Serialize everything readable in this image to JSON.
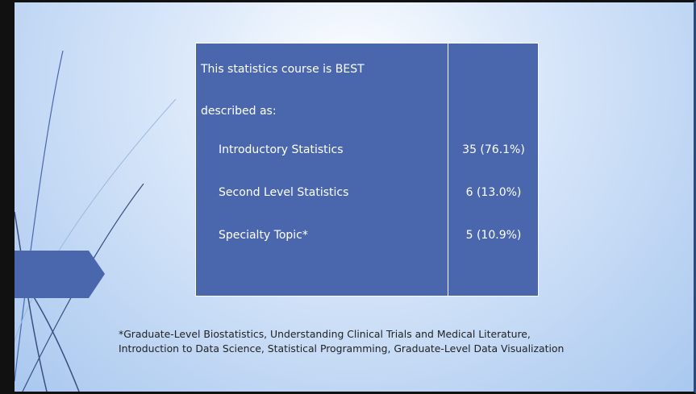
{
  "slide": {
    "table": {
      "header": "This statistics course is BEST described as:",
      "rows": [
        [
          "Introductory Statistics",
          "35 (76.1%)"
        ],
        [
          "Second Level Statistics",
          "6 (13.0%)"
        ],
        [
          "Specialty Topic*",
          "5 (10.9%)"
        ]
      ]
    },
    "footnote": [
      "*Graduate-Level Biostatistics, Understanding Clinical Trials and Medical Literature,",
      "Introduction to Data Science, Statistical Programming, Graduate-Level Data Visualization"
    ]
  }
}
